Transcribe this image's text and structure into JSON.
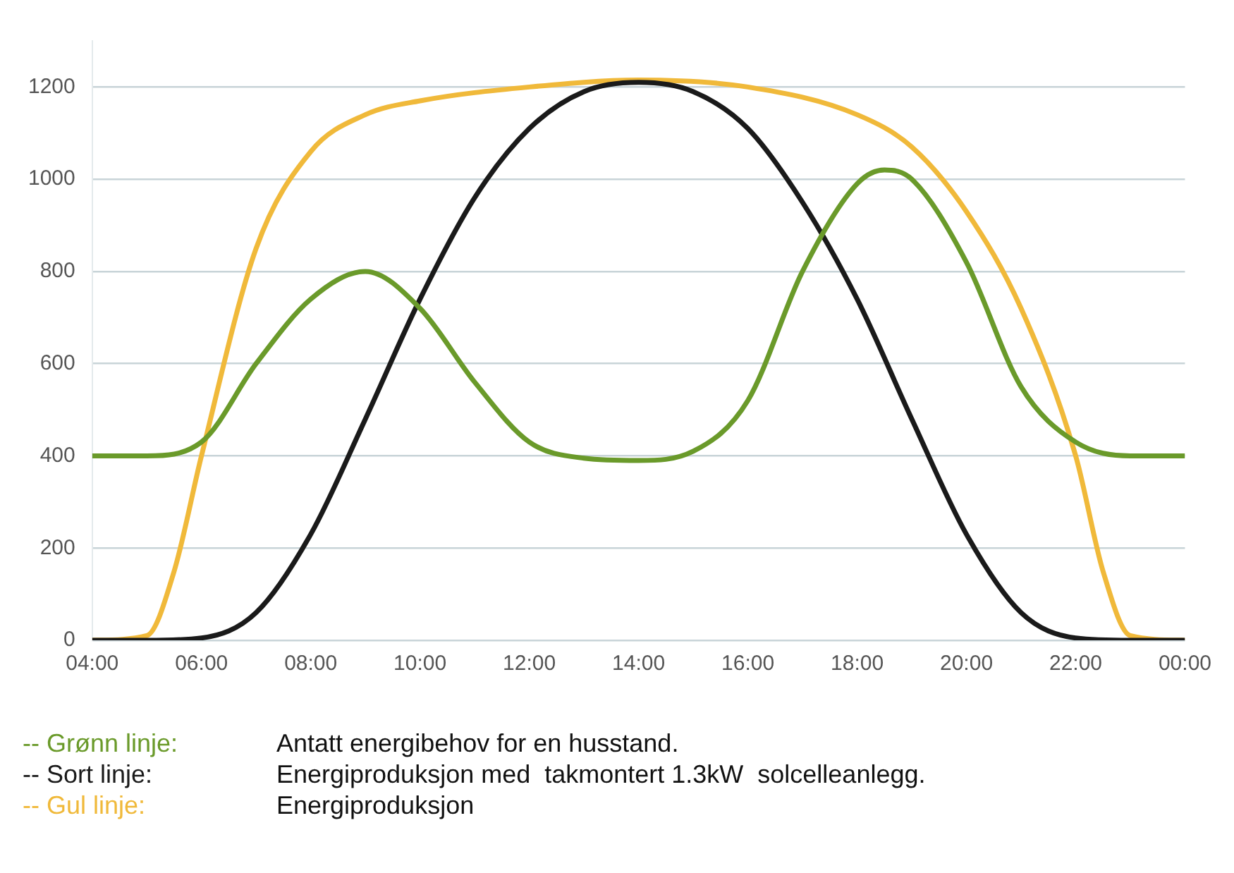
{
  "chart_data": {
    "type": "line",
    "x": [
      4,
      5,
      6,
      7,
      8,
      9,
      10,
      11,
      12,
      13,
      14,
      15,
      16,
      17,
      18,
      18.5,
      19,
      20,
      21,
      22,
      23,
      24
    ],
    "xlim": [
      4,
      24
    ],
    "xticks": [
      {
        "value": 4,
        "label": "04:00"
      },
      {
        "value": 6,
        "label": "06:00"
      },
      {
        "value": 8,
        "label": "08:00"
      },
      {
        "value": 10,
        "label": "10:00"
      },
      {
        "value": 12,
        "label": "12:00"
      },
      {
        "value": 14,
        "label": "14:00"
      },
      {
        "value": 16,
        "label": "16:00"
      },
      {
        "value": 18,
        "label": "18:00"
      },
      {
        "value": 20,
        "label": "20:00"
      },
      {
        "value": 22,
        "label": "22:00"
      },
      {
        "value": 24,
        "label": "00:00"
      }
    ],
    "ylim": [
      0,
      1300
    ],
    "yticks": [
      0,
      200,
      400,
      600,
      800,
      1000,
      1200
    ],
    "grid": "y",
    "legend": "bottom",
    "marker": "none",
    "line_style": "solid",
    "series": [
      {
        "name": "-- Grønn linje:",
        "color": "#6a9a2a",
        "values": [
          400,
          400,
          430,
          600,
          740,
          800,
          720,
          560,
          430,
          395,
          390,
          410,
          520,
          800,
          990,
          1020,
          1000,
          820,
          550,
          430,
          400,
          400
        ]
      },
      {
        "name": "-- Sort linje:",
        "color": "#1a1a1a",
        "x": [
          4,
          5,
          6,
          7,
          8,
          9,
          10,
          11,
          12,
          13,
          14,
          15,
          16,
          17,
          18,
          19,
          20,
          21,
          22,
          23,
          24
        ],
        "values": [
          0,
          0,
          5,
          60,
          230,
          480,
          740,
          960,
          1110,
          1190,
          1210,
          1190,
          1110,
          950,
          740,
          480,
          230,
          60,
          5,
          0,
          0
        ]
      },
      {
        "name": "-- Gul linje:",
        "color": "#f0b93a",
        "x": [
          4,
          5,
          5.5,
          6,
          7,
          8,
          9,
          10,
          12,
          14,
          16,
          18,
          19,
          20,
          21,
          22,
          22.5,
          23,
          24
        ],
        "values": [
          0,
          10,
          150,
          400,
          850,
          1060,
          1140,
          1170,
          1200,
          1215,
          1200,
          1140,
          1070,
          930,
          720,
          400,
          150,
          10,
          0
        ]
      }
    ],
    "annotations": [
      "Antatt energibehov for en husstand.",
      "Energiproduksjon med  takmontert 1.3kW  solcelleanlegg.",
      "Energiproduksjon"
    ]
  }
}
